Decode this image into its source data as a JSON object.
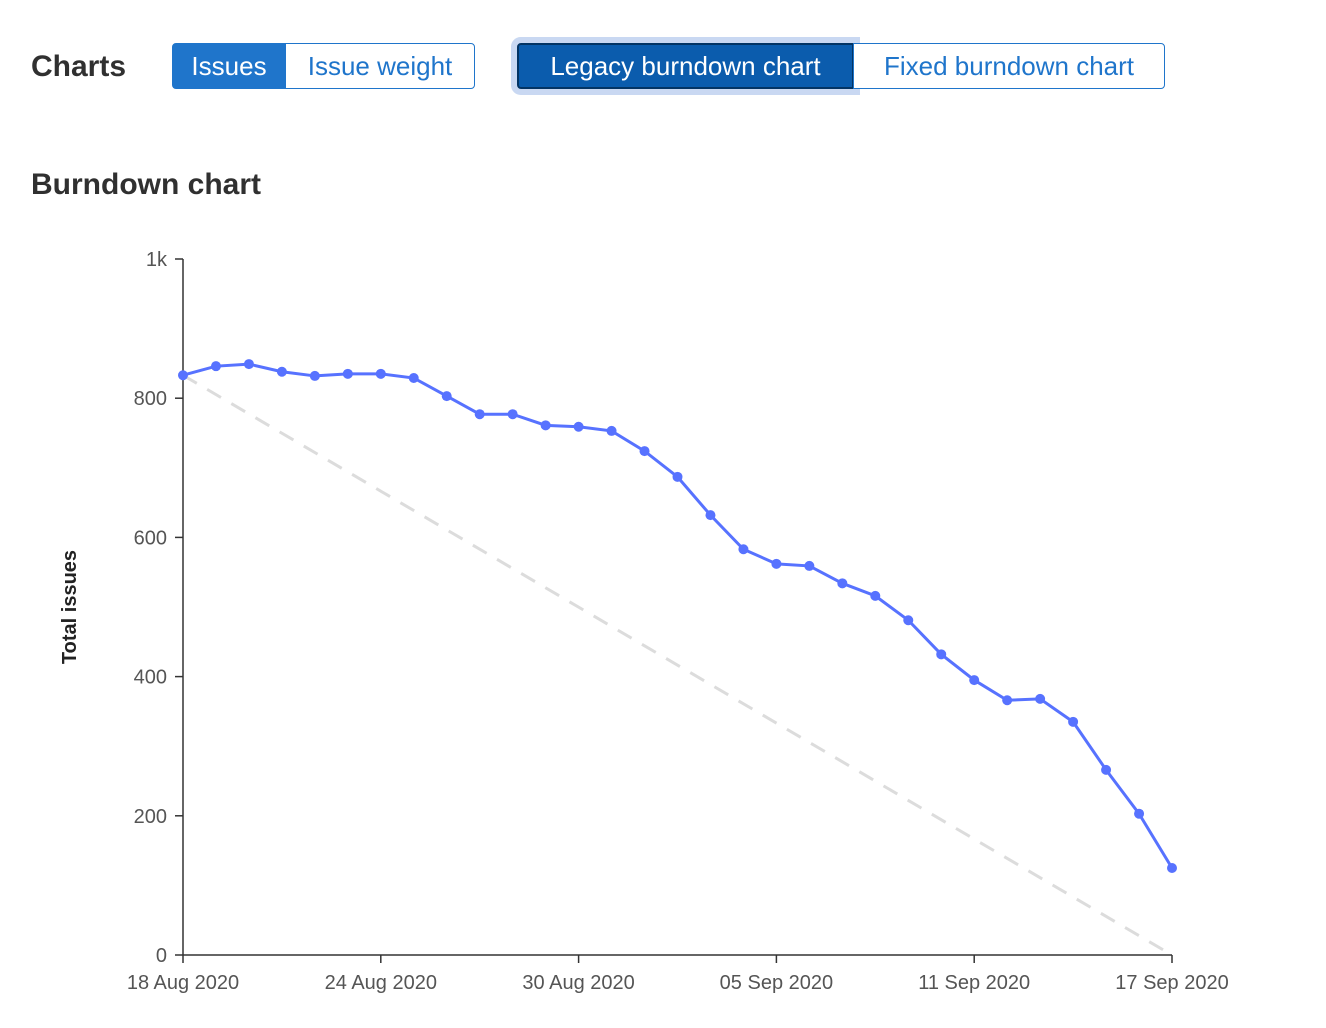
{
  "header": {
    "title": "Charts",
    "metric_toggle": [
      "Issues",
      "Issue weight"
    ],
    "chart_toggle": [
      "Legacy burndown chart",
      "Fixed burndown chart"
    ]
  },
  "chart_data": {
    "type": "line",
    "title": "Burndown chart",
    "ylabel": "Total issues",
    "x": [
      "2020-08-18",
      "2020-08-19",
      "2020-08-20",
      "2020-08-21",
      "2020-08-22",
      "2020-08-23",
      "2020-08-24",
      "2020-08-25",
      "2020-08-26",
      "2020-08-27",
      "2020-08-28",
      "2020-08-29",
      "2020-08-30",
      "2020-08-31",
      "2020-09-01",
      "2020-09-02",
      "2020-09-03",
      "2020-09-04",
      "2020-09-05",
      "2020-09-06",
      "2020-09-07",
      "2020-09-08",
      "2020-09-09",
      "2020-09-10",
      "2020-09-11",
      "2020-09-12",
      "2020-09-13",
      "2020-09-14",
      "2020-09-15",
      "2020-09-16",
      "2020-09-17"
    ],
    "series": [
      {
        "color": "#5772ff",
        "values": [
          833,
          846,
          849,
          838,
          832,
          835,
          835,
          829,
          803,
          777,
          777,
          761,
          759,
          753,
          724,
          687,
          632,
          583,
          562,
          559,
          534,
          516,
          481,
          432,
          395,
          366,
          368,
          335,
          266,
          203,
          125
        ]
      },
      {
        "color": "#dcdcdc",
        "dashed": true,
        "x": [
          "2020-08-18",
          "2020-09-17"
        ],
        "values": [
          833,
          0
        ]
      }
    ],
    "xlim": [
      "2020-08-18",
      "2020-09-17"
    ],
    "xticks": [
      {
        "value": "2020-08-18",
        "label": "18 Aug 2020"
      },
      {
        "value": "2020-08-24",
        "label": "24 Aug 2020"
      },
      {
        "value": "2020-08-30",
        "label": "30 Aug 2020"
      },
      {
        "value": "2020-09-05",
        "label": "05 Sep 2020"
      },
      {
        "value": "2020-09-11",
        "label": "11 Sep 2020"
      },
      {
        "value": "2020-09-17",
        "label": "17 Sep 2020"
      }
    ],
    "ylim": [
      0,
      1000
    ],
    "yticks": [
      0,
      200,
      400,
      600,
      800,
      {
        "value": 1000,
        "label": "1k"
      }
    ],
    "grid": false
  }
}
